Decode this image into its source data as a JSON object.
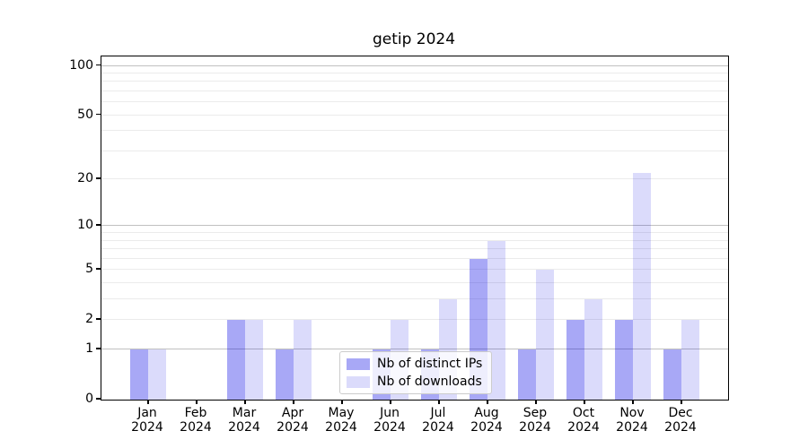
{
  "title": "getip 2024",
  "chart_data": {
    "type": "bar",
    "title": "getip 2024",
    "x_tick_labels": [
      [
        "Jan",
        "2024"
      ],
      [
        "Feb",
        "2024"
      ],
      [
        "Mar",
        "2024"
      ],
      [
        "Apr",
        "2024"
      ],
      [
        "May",
        "2024"
      ],
      [
        "Jun",
        "2024"
      ],
      [
        "Jul",
        "2024"
      ],
      [
        "Aug",
        "2024"
      ],
      [
        "Sep",
        "2024"
      ],
      [
        "Oct",
        "2024"
      ],
      [
        "Nov",
        "2024"
      ],
      [
        "Dec",
        "2024"
      ]
    ],
    "series": [
      {
        "name": "Nb of distinct IPs",
        "color": "rgba(0,0,230,0.34)",
        "values": [
          1,
          0,
          2,
          1,
          0,
          1,
          1,
          6,
          1,
          2,
          2,
          1
        ]
      },
      {
        "name": "Nb of downloads",
        "color": "rgba(0,0,230,0.14)",
        "values": [
          1,
          0,
          2,
          2,
          0,
          2,
          3,
          8,
          5,
          3,
          22,
          2
        ]
      }
    ],
    "yscale": "log1p",
    "ylim": [
      0,
      114
    ],
    "y_tick_values": [
      0,
      1,
      2,
      5,
      10,
      20,
      50,
      100
    ],
    "grid_major_values": [
      1,
      10,
      100
    ],
    "grid_minor_values": [
      2,
      3,
      4,
      5,
      6,
      7,
      8,
      9,
      20,
      30,
      40,
      50,
      60,
      70,
      80,
      90
    ],
    "legend_position": "lower center",
    "grid": "both"
  },
  "colors": {
    "bar_distinct_ips": "rgba(0,0,230,0.34)",
    "bar_downloads": "rgba(0,0,230,0.14)",
    "grid_major": "#c0c0c0",
    "grid_minor": "#ebebeb",
    "spine": "#000000",
    "legend_background": "rgba(255,255,255,0.8)",
    "legend_border": "#cccccc"
  }
}
